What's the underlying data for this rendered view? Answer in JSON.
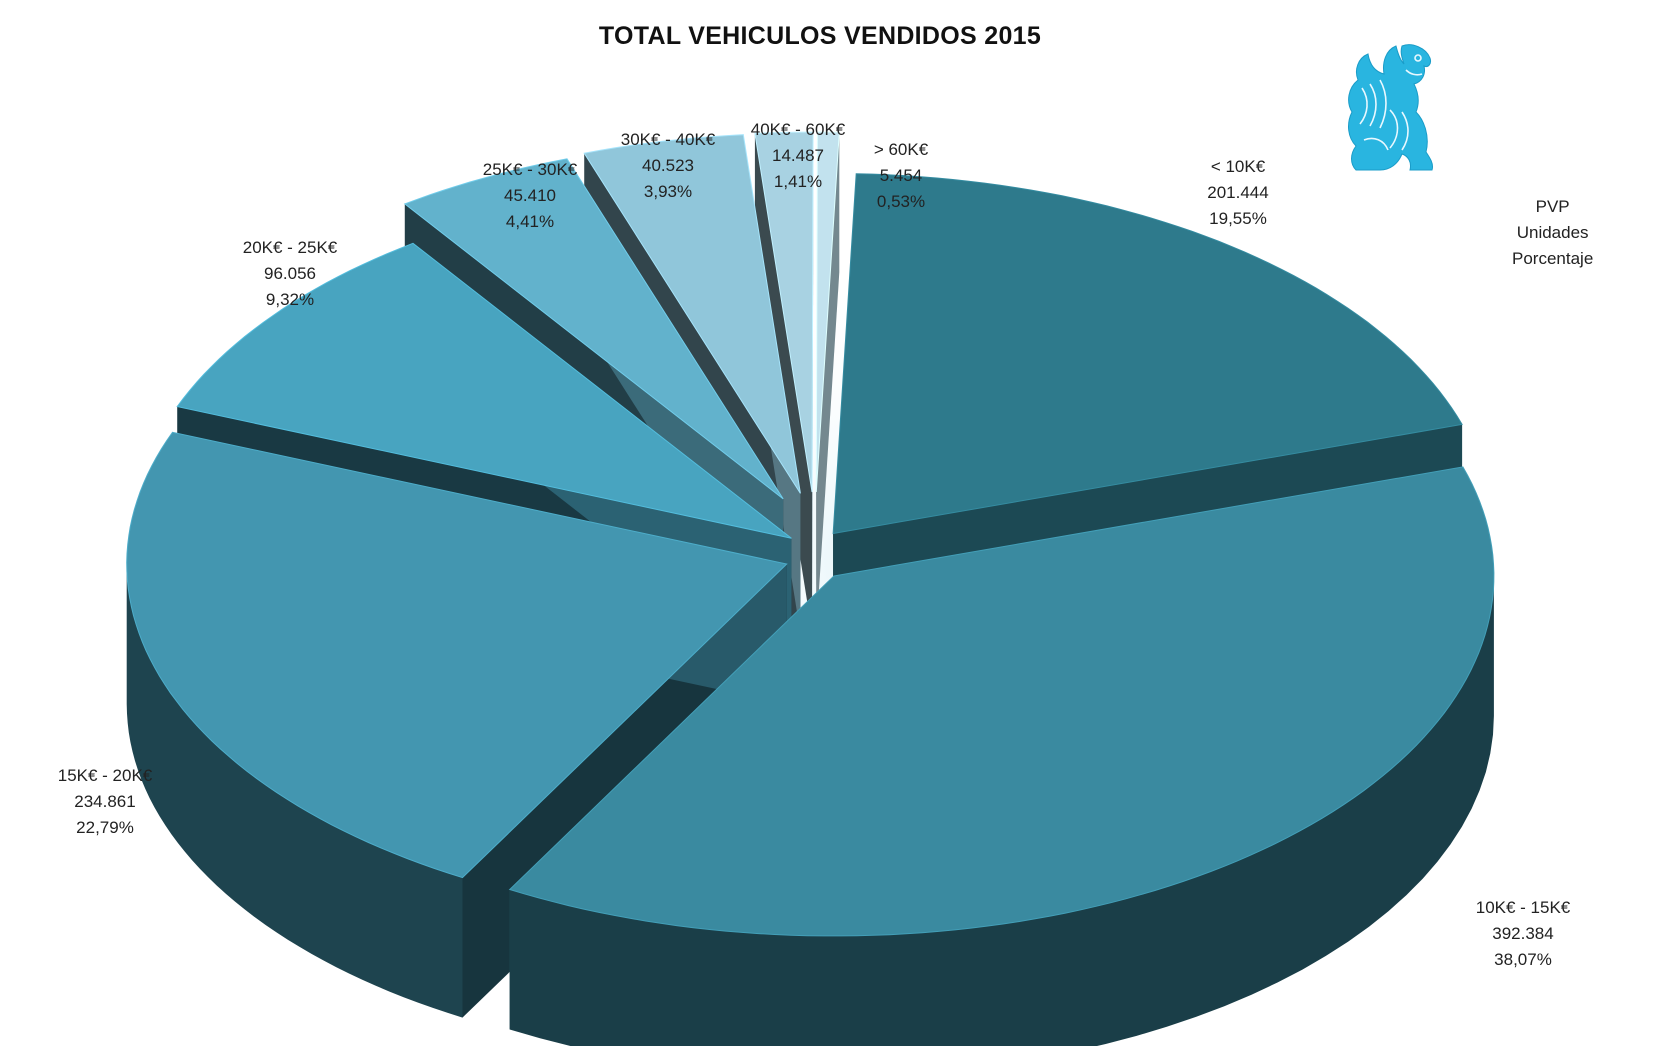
{
  "chart_data": {
    "type": "pie",
    "title": "TOTAL VEHICULOS  VENDIDOS  2015",
    "legend": [
      "PVP",
      "Unidades",
      "Porcentaje"
    ],
    "legend_placement": "top-right",
    "slices": [
      {
        "label": "< 10K€",
        "units_text": "201.444",
        "percent_text": "19,55%",
        "units": 201444,
        "percent": 19.55,
        "color": "#2e7a8c"
      },
      {
        "label": "10K€ - 15K€",
        "units_text": "392.384",
        "percent_text": "38,07%",
        "units": 392384,
        "percent": 38.07,
        "color": "#3a8aa0"
      },
      {
        "label": "15K€ - 20K€",
        "units_text": "234.861",
        "percent_text": "22,79%",
        "units": 234861,
        "percent": 22.79,
        "color": "#4396b0"
      },
      {
        "label": "20K€ - 25K€",
        "units_text": "96.056",
        "percent_text": "9,32%",
        "units": 96056,
        "percent": 9.32,
        "color": "#48a4c0"
      },
      {
        "label": "25K€ - 30K€",
        "units_text": "45.410",
        "percent_text": "4,41%",
        "units": 45410,
        "percent": 4.41,
        "color": "#62b2cc"
      },
      {
        "label": "30K€ - 40K€",
        "units_text": "40.523",
        "percent_text": "3,93%",
        "units": 40523,
        "percent": 3.93,
        "color": "#90c6da"
      },
      {
        "label": "40K€ - 60K€",
        "units_text": "14.487",
        "percent_text": "1,41%",
        "units": 14487,
        "percent": 1.41,
        "color": "#a8d2e2"
      },
      {
        "label": "> 60K€",
        "units_text": "5.454",
        "percent_text": "0,53%",
        "units": 5454,
        "percent": 0.53,
        "color": "#c2e2ee"
      }
    ]
  },
  "logo": {
    "name": "griffin-logo",
    "color": "#29b5e0"
  }
}
